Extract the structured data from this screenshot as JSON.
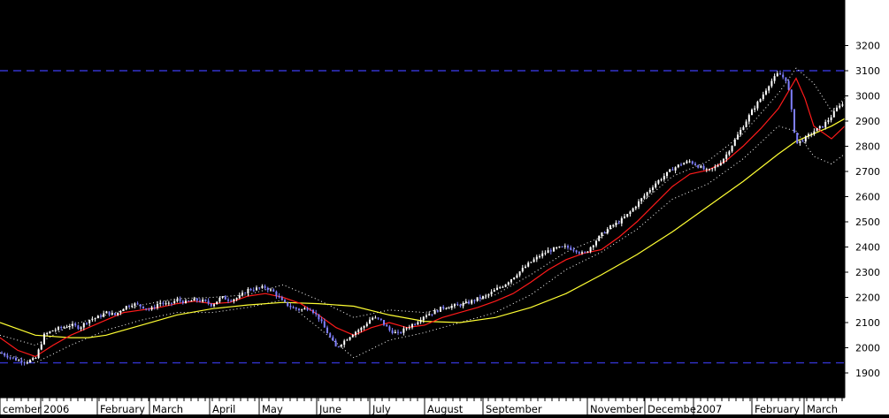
{
  "chart_data": {
    "type": "line",
    "style": "candlestick price chart with moving averages and envelope bands",
    "colors": {
      "background": "#000000",
      "axis_panel": "#ffffff",
      "price_up": "#ffffff",
      "price_down": "#7f7fff",
      "ma_short": "#ff1a1a",
      "ma_long": "#ffff33",
      "envelope": "#ffffff",
      "reference_lines": "#3333cc"
    },
    "ylim": [
      1850,
      3250
    ],
    "y_ticks": [
      "1900",
      "2000",
      "2100",
      "2200",
      "2300",
      "2400",
      "2500",
      "2600",
      "2700",
      "2800",
      "2900",
      "3000",
      "3100",
      "3200"
    ],
    "x_tick_labels": [
      "cember",
      "2006",
      "February",
      "March",
      "April",
      "May",
      "June",
      "July",
      "August",
      "September",
      "November",
      "Decembe",
      "2007",
      "February",
      "March"
    ],
    "reference_levels": [
      3100,
      1940
    ],
    "series": [
      {
        "role": "price",
        "x": [
          0,
          10,
          20,
          30,
          40,
          50,
          60,
          70,
          80,
          90,
          100,
          110,
          120,
          130,
          140,
          150,
          160,
          170,
          180,
          190,
          200,
          210,
          220,
          230,
          240,
          250,
          260,
          270,
          280,
          290,
          300,
          310,
          320,
          330,
          340,
          350,
          360,
          370,
          380,
          390,
          400,
          410,
          420,
          430,
          440,
          450,
          460,
          470,
          480,
          490,
          500,
          510,
          520,
          530,
          540,
          550,
          560,
          570,
          580,
          590,
          600,
          610,
          620,
          630,
          640,
          650,
          660,
          670,
          680,
          690,
          700,
          710,
          720,
          730,
          740,
          750,
          760,
          770,
          780,
          790,
          800,
          810,
          820,
          830,
          840,
          850,
          860,
          870,
          880,
          890,
          900,
          910,
          920,
          930,
          940,
          950,
          955
        ],
        "values": [
          1980,
          1965,
          1950,
          1945,
          1955,
          2050,
          2070,
          2080,
          2090,
          2080,
          2110,
          2120,
          2140,
          2130,
          2160,
          2175,
          2165,
          2150,
          2180,
          2170,
          2190,
          2180,
          2190,
          2185,
          2170,
          2200,
          2190,
          2200,
          2230,
          2235,
          2240,
          2220,
          2180,
          2160,
          2150,
          2160,
          2120,
          2060,
          2000,
          2030,
          2060,
          2080,
          2120,
          2110,
          2070,
          2055,
          2080,
          2100,
          2130,
          2140,
          2160,
          2165,
          2170,
          2180,
          2195,
          2205,
          2230,
          2250,
          2280,
          2310,
          2340,
          2365,
          2385,
          2395,
          2400,
          2390,
          2370,
          2410,
          2450,
          2480,
          2500,
          2530,
          2570,
          2610,
          2650,
          2680,
          2710,
          2730,
          2740,
          2720,
          2700,
          2720,
          2760,
          2820,
          2880,
          2940,
          2990,
          3050,
          3090,
          3060,
          2810,
          2830,
          2860,
          2880,
          2920,
          2970,
          2960
        ]
      },
      {
        "role": "short_moving_average",
        "x": [
          0,
          20,
          40,
          60,
          80,
          100,
          120,
          140,
          160,
          180,
          200,
          220,
          240,
          260,
          280,
          300,
          320,
          340,
          360,
          380,
          400,
          420,
          440,
          460,
          480,
          500,
          520,
          540,
          560,
          580,
          600,
          620,
          640,
          660,
          680,
          700,
          720,
          740,
          760,
          780,
          800,
          820,
          840,
          860,
          880,
          900,
          910,
          920,
          940,
          955
        ],
        "values": [
          2040,
          1990,
          1965,
          2010,
          2050,
          2080,
          2110,
          2140,
          2150,
          2160,
          2175,
          2185,
          2175,
          2180,
          2205,
          2215,
          2200,
          2175,
          2130,
          2080,
          2050,
          2080,
          2100,
          2080,
          2090,
          2120,
          2140,
          2160,
          2185,
          2215,
          2260,
          2310,
          2350,
          2375,
          2390,
          2440,
          2500,
          2570,
          2640,
          2690,
          2705,
          2740,
          2800,
          2870,
          2950,
          3070,
          2990,
          2880,
          2830,
          2880
        ]
      },
      {
        "role": "long_moving_average",
        "x": [
          0,
          40,
          80,
          100,
          120,
          160,
          200,
          240,
          280,
          320,
          360,
          400,
          440,
          480,
          520,
          560,
          600,
          640,
          680,
          720,
          760,
          800,
          840,
          880,
          900,
          920,
          940,
          955
        ],
        "values": [
          2100,
          2050,
          2040,
          2040,
          2050,
          2090,
          2130,
          2155,
          2170,
          2180,
          2175,
          2165,
          2130,
          2105,
          2100,
          2120,
          2160,
          2215,
          2290,
          2370,
          2460,
          2560,
          2660,
          2770,
          2820,
          2850,
          2880,
          2910
        ]
      },
      {
        "role": "upper_envelope",
        "x": [
          0,
          40,
          80,
          120,
          160,
          200,
          240,
          280,
          320,
          360,
          400,
          440,
          480,
          520,
          560,
          600,
          640,
          680,
          720,
          760,
          800,
          840,
          880,
          900,
          920,
          940,
          955
        ],
        "values": [
          2050,
          2010,
          2090,
          2130,
          2170,
          2195,
          2200,
          2210,
          2250,
          2190,
          2120,
          2150,
          2140,
          2170,
          2210,
          2290,
          2380,
          2440,
          2560,
          2680,
          2740,
          2850,
          3010,
          3110,
          3050,
          2940,
          2990
        ]
      },
      {
        "role": "lower_envelope",
        "x": [
          0,
          40,
          80,
          120,
          160,
          200,
          240,
          280,
          320,
          360,
          400,
          440,
          480,
          520,
          560,
          600,
          640,
          680,
          720,
          760,
          800,
          840,
          880,
          900,
          920,
          940,
          955
        ],
        "values": [
          1980,
          1940,
          2010,
          2070,
          2110,
          2140,
          2140,
          2160,
          2190,
          2080,
          1960,
          2030,
          2060,
          2100,
          2140,
          2210,
          2310,
          2380,
          2470,
          2590,
          2650,
          2750,
          2880,
          2860,
          2760,
          2730,
          2770
        ]
      }
    ]
  }
}
